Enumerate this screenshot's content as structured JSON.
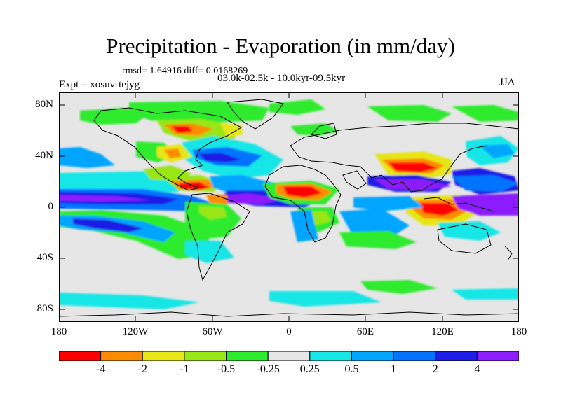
{
  "header": {
    "title": "Precipitation - Evaporation (in mm/day)",
    "stats": "rmsd= 1.64916 diff= 0.0168269",
    "experiment": "Expt = xosuv-tejyg",
    "period": "03.0k-02.5k - 10.0kyr-09.5kyr",
    "season": "JJA"
  },
  "map": {
    "background_color": "#e6e6e6",
    "coastline_color": "#000000",
    "lat_ticks": [
      "80N",
      "40N",
      "0",
      "40S",
      "80S"
    ],
    "lon_ticks": [
      "180",
      "120W",
      "60W",
      "0",
      "60E",
      "120E",
      "180"
    ]
  },
  "colorbar": {
    "colors": [
      "#ff0000",
      "#ff8c00",
      "#e6e619",
      "#99e619",
      "#2eeb2e",
      "#e6e6e6",
      "#19e6e6",
      "#00a5ff",
      "#0073ff",
      "#1e1ee6",
      "#8c1eff"
    ],
    "labels": [
      "-4",
      "-2",
      "-1",
      "-0.5",
      "-0.25",
      "0.25",
      "0.5",
      "1",
      "2",
      "4"
    ]
  }
}
